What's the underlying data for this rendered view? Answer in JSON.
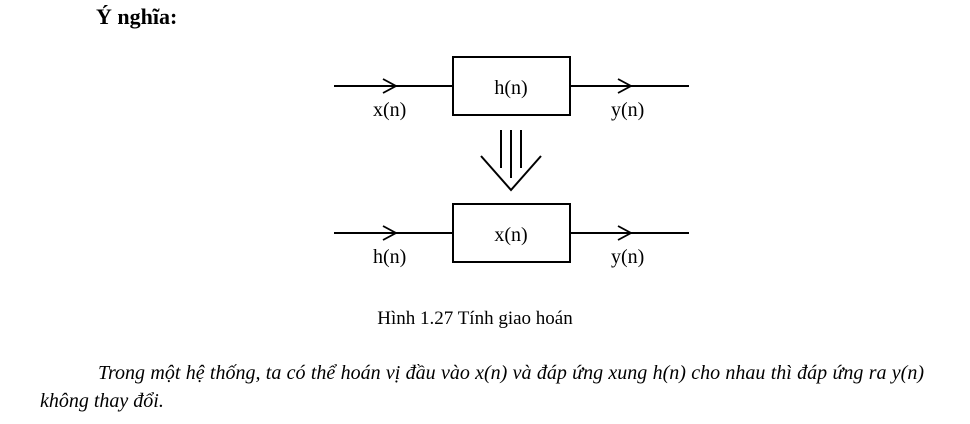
{
  "heading": "Ý nghĩa:",
  "figure": {
    "top": {
      "input_label": "x(n)",
      "block_label": "h(n)",
      "output_label": "y(n)"
    },
    "bottom": {
      "input_label": "h(n)",
      "block_label": "x(n)",
      "output_label": "y(n)"
    },
    "caption": "Hình 1.27 Tính giao hoán"
  },
  "paragraph": "Trong một hệ thống, ta có thể hoán vị đầu vào x(n) và đáp ứng xung h(n) cho nhau thì đáp ứng ra y(n) không thay đổi."
}
